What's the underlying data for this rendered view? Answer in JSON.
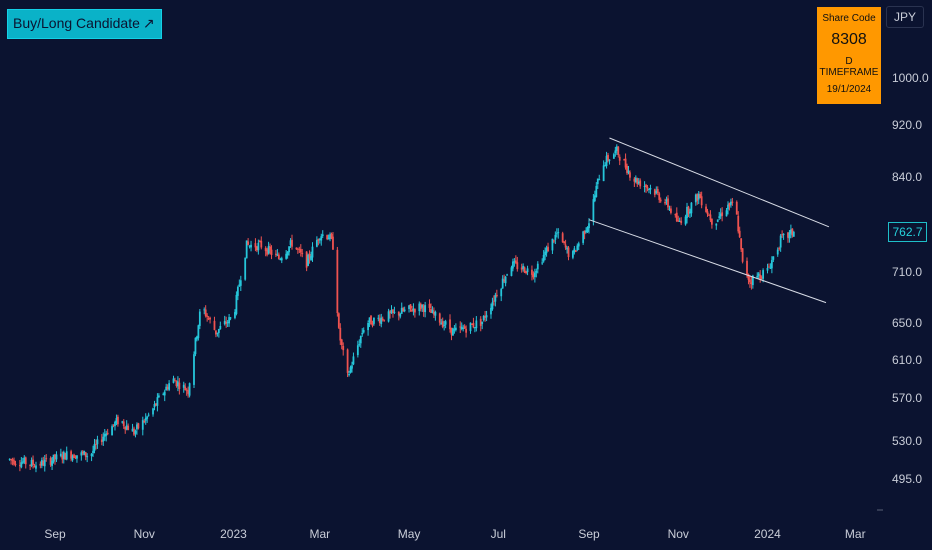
{
  "tag": {
    "label": "Buy/Long Candidate",
    "arrow": "↗"
  },
  "info_box": {
    "label": "Share Code",
    "code": "8308",
    "timeframe": "D TIMEFRAME",
    "date": "19/1/2024"
  },
  "currency": "JPY",
  "last_price": "762.7",
  "colors": {
    "background": "#0b1330",
    "up": "#26c6da",
    "down": "#ef5350",
    "channel": "#d8dce6",
    "tag": "#0ab2c8",
    "info_box": "#ff9800"
  },
  "chart_data": {
    "type": "candlestick",
    "title": "",
    "xlabel": "",
    "ylabel": "",
    "y_axis_position": "right",
    "y_ticks": [
      "1000.0",
      "920.0",
      "840.0",
      "710.0",
      "650.0",
      "610.0",
      "570.0",
      "530.0",
      "495.0"
    ],
    "x_ticks": [
      "Sep",
      "Nov",
      "2023",
      "Mar",
      "May",
      "Jul",
      "Sep",
      "Nov",
      "2024",
      "Mar"
    ],
    "x_start": "2022-08-01",
    "x_end": "2024-04-15",
    "price_trend": [
      {
        "date": "2022-08-01",
        "price": 513
      },
      {
        "date": "2022-08-20",
        "price": 508
      },
      {
        "date": "2022-09-10",
        "price": 518
      },
      {
        "date": "2022-09-25",
        "price": 517
      },
      {
        "date": "2022-10-05",
        "price": 537
      },
      {
        "date": "2022-10-15",
        "price": 550
      },
      {
        "date": "2022-10-25",
        "price": 538
      },
      {
        "date": "2022-11-05",
        "price": 555
      },
      {
        "date": "2022-11-20",
        "price": 590
      },
      {
        "date": "2022-12-01",
        "price": 578
      },
      {
        "date": "2022-12-10",
        "price": 670
      },
      {
        "date": "2022-12-20",
        "price": 640
      },
      {
        "date": "2023-01-01",
        "price": 658
      },
      {
        "date": "2023-01-10",
        "price": 745
      },
      {
        "date": "2023-01-20",
        "price": 745
      },
      {
        "date": "2023-02-01",
        "price": 728
      },
      {
        "date": "2023-02-10",
        "price": 748
      },
      {
        "date": "2023-02-20",
        "price": 722
      },
      {
        "date": "2023-03-01",
        "price": 760
      },
      {
        "date": "2023-03-07",
        "price": 758
      },
      {
        "date": "2023-03-10",
        "price": 745
      },
      {
        "date": "2023-03-14",
        "price": 640
      },
      {
        "date": "2023-03-20",
        "price": 592
      },
      {
        "date": "2023-04-01",
        "price": 650
      },
      {
        "date": "2023-04-20",
        "price": 660
      },
      {
        "date": "2023-05-10",
        "price": 670
      },
      {
        "date": "2023-06-01",
        "price": 640
      },
      {
        "date": "2023-06-20",
        "price": 652
      },
      {
        "date": "2023-07-10",
        "price": 720
      },
      {
        "date": "2023-07-25",
        "price": 710
      },
      {
        "date": "2023-08-10",
        "price": 760
      },
      {
        "date": "2023-08-20",
        "price": 728
      },
      {
        "date": "2023-09-01",
        "price": 778
      },
      {
        "date": "2023-09-10",
        "price": 860
      },
      {
        "date": "2023-09-20",
        "price": 880
      },
      {
        "date": "2023-10-01",
        "price": 838
      },
      {
        "date": "2023-10-15",
        "price": 822
      },
      {
        "date": "2023-10-25",
        "price": 800
      },
      {
        "date": "2023-11-01",
        "price": 775
      },
      {
        "date": "2023-11-15",
        "price": 815
      },
      {
        "date": "2023-11-25",
        "price": 775
      },
      {
        "date": "2023-12-05",
        "price": 800
      },
      {
        "date": "2023-12-10",
        "price": 800
      },
      {
        "date": "2023-12-15",
        "price": 720
      },
      {
        "date": "2023-12-20",
        "price": 700
      },
      {
        "date": "2024-01-01",
        "price": 712
      },
      {
        "date": "2024-01-10",
        "price": 752
      },
      {
        "date": "2024-01-19",
        "price": 762.7
      }
    ],
    "channel": [
      {
        "name": "upper",
        "from": {
          "date": "2023-09-15",
          "price": 900
        },
        "to": {
          "date": "2024-02-12",
          "price": 770
        }
      },
      {
        "name": "lower",
        "from": {
          "date": "2023-09-01",
          "price": 780
        },
        "to": {
          "date": "2024-02-10",
          "price": 674
        }
      }
    ],
    "grid": false,
    "legend": "none"
  }
}
